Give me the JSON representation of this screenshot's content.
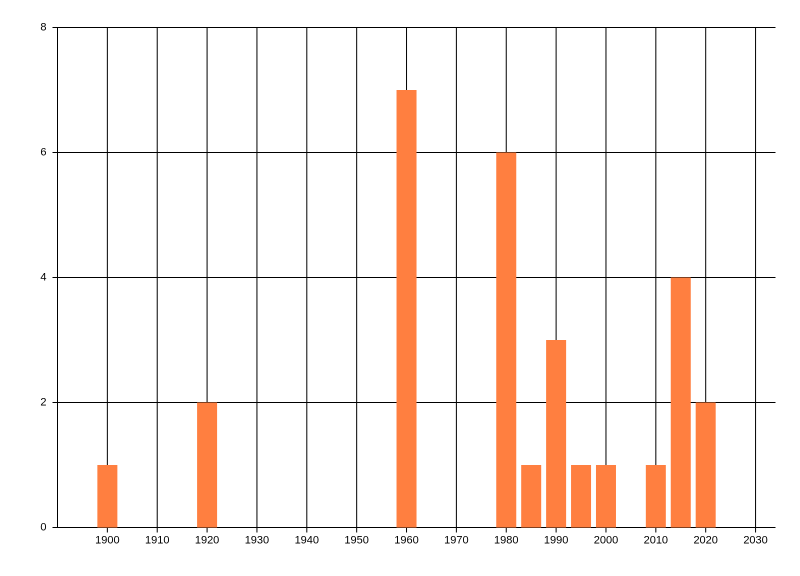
{
  "chart_data": {
    "type": "bar",
    "x": [
      1900,
      1920,
      1960,
      1980,
      1985,
      1990,
      1995,
      2000,
      2010,
      2015,
      2020
    ],
    "values": [
      1,
      2,
      7,
      6,
      1,
      3,
      1,
      1,
      1,
      4,
      2
    ],
    "color": "#ff7f40",
    "xlim": [
      1890,
      2034
    ],
    "xticks": [
      1900,
      1910,
      1920,
      1930,
      1940,
      1950,
      1960,
      1970,
      1980,
      1990,
      2000,
      2010,
      2020,
      2030
    ],
    "ylim": [
      0,
      8
    ],
    "yticks": [
      0,
      2,
      4,
      6,
      8
    ],
    "grid": true
  }
}
